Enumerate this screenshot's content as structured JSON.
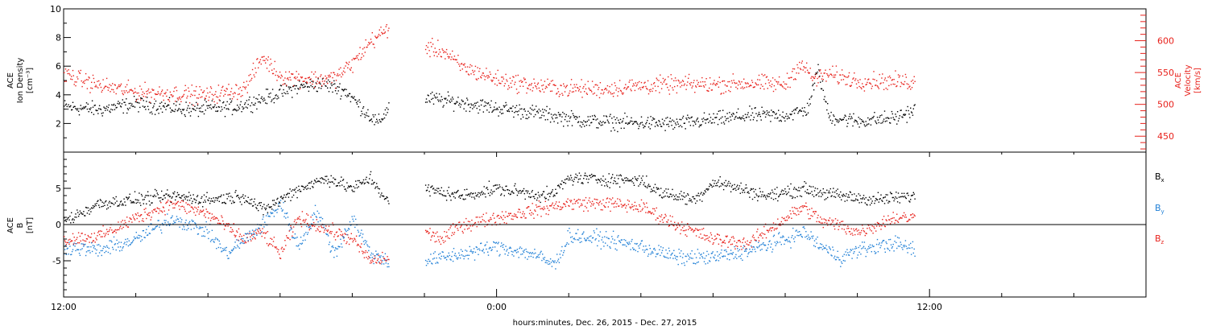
{
  "figure": {
    "xlabel": "hours:minutes, Dec. 26, 2015 - Dec. 27, 2015"
  },
  "chart_data": [
    {
      "type": "scatter",
      "panel": "top",
      "xlabel": "hours:minutes, Dec. 26, 2015 - Dec. 27, 2015",
      "x_range_hours": [
        12,
        42
      ],
      "x_ticks": [
        {
          "hour": 12,
          "label": "12:00"
        },
        {
          "hour": 24,
          "label": "0:00"
        },
        {
          "hour": 36,
          "label": "12:00"
        }
      ],
      "gap_hours": [
        21.0,
        22.0
      ],
      "data_end_hour": 35.6,
      "left_axis": {
        "ylabel_lines": [
          "ACE",
          "Ion Density",
          "[cm⁻³]"
        ],
        "ylim": [
          0,
          10
        ],
        "ticks": [
          2,
          4,
          6,
          8,
          10
        ],
        "color": "#000000"
      },
      "right_axis": {
        "ylabel_lines": [
          "ACE",
          "Velocity",
          "[km/s]"
        ],
        "ylim": [
          425,
          650
        ],
        "ticks": [
          450,
          500,
          550,
          600
        ],
        "color": "#e8211b"
      },
      "series": [
        {
          "color": "#000000",
          "axis": "left",
          "keypoints": [
            [
              12.0,
              3.2
            ],
            [
              13.0,
              3.0
            ],
            [
              14.0,
              3.4
            ],
            [
              15.5,
              3.0
            ],
            [
              16.8,
              3.2
            ],
            [
              17.8,
              4.0
            ],
            [
              18.5,
              4.6
            ],
            [
              19.2,
              4.8
            ],
            [
              19.8,
              4.3
            ],
            [
              20.3,
              3.0
            ],
            [
              20.7,
              2.0
            ],
            [
              21.0,
              3.2
            ],
            [
              22.0,
              3.8
            ],
            [
              23.0,
              3.5
            ],
            [
              24.0,
              3.1
            ],
            [
              25.0,
              2.8
            ],
            [
              26.5,
              2.2
            ],
            [
              27.5,
              2.1
            ],
            [
              29.0,
              2.0
            ],
            [
              30.0,
              2.3
            ],
            [
              31.0,
              2.6
            ],
            [
              32.0,
              2.6
            ],
            [
              32.6,
              3.0
            ],
            [
              32.9,
              5.8
            ],
            [
              33.2,
              2.5
            ],
            [
              34.0,
              2.2
            ],
            [
              35.0,
              2.4
            ],
            [
              35.6,
              3.0
            ]
          ],
          "noise": 0.7
        },
        {
          "color": "#e8211b",
          "axis": "right",
          "keypoints": [
            [
              12.0,
              548
            ],
            [
              13.0,
              530
            ],
            [
              14.0,
              520
            ],
            [
              15.0,
              518
            ],
            [
              16.0,
              515
            ],
            [
              17.0,
              525
            ],
            [
              17.5,
              575
            ],
            [
              18.0,
              545
            ],
            [
              19.0,
              540
            ],
            [
              19.5,
              542
            ],
            [
              20.0,
              565
            ],
            [
              20.5,
              600
            ],
            [
              21.0,
              620
            ],
            [
              22.0,
              590
            ],
            [
              22.5,
              585
            ],
            [
              23.0,
              560
            ],
            [
              24.0,
              540
            ],
            [
              25.0,
              530
            ],
            [
              26.0,
              525
            ],
            [
              27.0,
              525
            ],
            [
              28.0,
              530
            ],
            [
              29.0,
              532
            ],
            [
              30.0,
              532
            ],
            [
              31.0,
              534
            ],
            [
              32.0,
              532
            ],
            [
              32.4,
              565
            ],
            [
              32.8,
              540
            ],
            [
              33.2,
              548
            ],
            [
              34.0,
              538
            ],
            [
              35.6,
              536
            ]
          ],
          "noise": 18
        }
      ]
    },
    {
      "type": "scatter",
      "panel": "bottom",
      "x_range_hours": [
        12,
        42
      ],
      "left_axis": {
        "ylabel_lines": [
          "ACE",
          "B",
          "[nT]"
        ],
        "ylim": [
          -10,
          10
        ],
        "ticks": [
          -5,
          0,
          5
        ],
        "color": "#000000"
      },
      "zero_line": true,
      "legend": [
        {
          "label": "B",
          "sub": "x",
          "color": "#000000"
        },
        {
          "label": "B",
          "sub": "y",
          "color": "#1f7fd6"
        },
        {
          "label": "B",
          "sub": "z",
          "color": "#e8211b"
        }
      ],
      "series": [
        {
          "name": "Bx",
          "color": "#000000",
          "keypoints": [
            [
              12.0,
              0.5
            ],
            [
              13.0,
              3.0
            ],
            [
              14.0,
              3.5
            ],
            [
              15.0,
              4.0
            ],
            [
              16.0,
              3.5
            ],
            [
              17.0,
              4.0
            ],
            [
              17.5,
              2.0
            ],
            [
              18.5,
              5.0
            ],
            [
              19.3,
              6.5
            ],
            [
              20.0,
              5.0
            ],
            [
              20.5,
              6.5
            ],
            [
              21.0,
              3.0
            ],
            [
              22.0,
              5.0
            ],
            [
              23.0,
              4.0
            ],
            [
              24.0,
              5.0
            ],
            [
              25.5,
              4.0
            ],
            [
              26.0,
              6.5
            ],
            [
              27.0,
              6.3
            ],
            [
              28.0,
              6.2
            ],
            [
              28.5,
              4.5
            ],
            [
              29.5,
              3.5
            ],
            [
              30.0,
              6.0
            ],
            [
              31.5,
              4.0
            ],
            [
              32.5,
              5.0
            ],
            [
              33.5,
              4.0
            ],
            [
              34.5,
              3.5
            ],
            [
              35.6,
              4.0
            ]
          ],
          "noise": 1.2
        },
        {
          "name": "By",
          "color": "#1f7fd6",
          "keypoints": [
            [
              12.0,
              -3.0
            ],
            [
              13.0,
              -3.5
            ],
            [
              14.0,
              -2.0
            ],
            [
              15.0,
              1.0
            ],
            [
              16.0,
              -1.0
            ],
            [
              16.5,
              -4.0
            ],
            [
              17.0,
              -2.0
            ],
            [
              17.5,
              0.0
            ],
            [
              18.0,
              3.0
            ],
            [
              18.5,
              -3.0
            ],
            [
              19.0,
              2.0
            ],
            [
              19.5,
              -4.0
            ],
            [
              20.0,
              1.0
            ],
            [
              20.5,
              -4.0
            ],
            [
              21.0,
              -5.0
            ],
            [
              22.0,
              -5.0
            ],
            [
              23.0,
              -4.0
            ],
            [
              24.0,
              -3.0
            ],
            [
              25.0,
              -4.0
            ],
            [
              25.6,
              -5.5
            ],
            [
              26.0,
              -1.5
            ],
            [
              27.0,
              -2.0
            ],
            [
              28.0,
              -3.0
            ],
            [
              29.0,
              -4.5
            ],
            [
              30.0,
              -4.5
            ],
            [
              31.0,
              -3.5
            ],
            [
              32.0,
              -2.0
            ],
            [
              32.5,
              -1.0
            ],
            [
              33.0,
              -3.0
            ],
            [
              33.5,
              -4.5
            ],
            [
              34.0,
              -3.5
            ],
            [
              35.0,
              -2.5
            ],
            [
              35.6,
              -3.5
            ]
          ],
          "noise": 1.4
        },
        {
          "name": "Bz",
          "color": "#e8211b",
          "keypoints": [
            [
              12.0,
              -2.0
            ],
            [
              13.0,
              -1.5
            ],
            [
              14.0,
              1.0
            ],
            [
              15.0,
              3.0
            ],
            [
              16.0,
              1.5
            ],
            [
              17.0,
              -2.0
            ],
            [
              17.5,
              -1.0
            ],
            [
              18.0,
              -4.0
            ],
            [
              18.5,
              1.0
            ],
            [
              19.5,
              -1.0
            ],
            [
              20.0,
              -2.0
            ],
            [
              20.5,
              -5.0
            ],
            [
              21.0,
              -4.5
            ],
            [
              22.0,
              -1.0
            ],
            [
              22.5,
              -2.0
            ],
            [
              23.0,
              0.0
            ],
            [
              24.0,
              1.0
            ],
            [
              25.0,
              2.0
            ],
            [
              26.0,
              3.0
            ],
            [
              27.0,
              3.0
            ],
            [
              28.0,
              2.5
            ],
            [
              29.0,
              0.0
            ],
            [
              30.0,
              -2.0
            ],
            [
              31.0,
              -2.5
            ],
            [
              32.0,
              1.0
            ],
            [
              32.5,
              2.5
            ],
            [
              33.0,
              0.5
            ],
            [
              33.5,
              0.0
            ],
            [
              34.0,
              -1.0
            ],
            [
              35.0,
              1.0
            ],
            [
              35.6,
              1.0
            ]
          ],
          "noise": 1.3
        }
      ]
    }
  ]
}
